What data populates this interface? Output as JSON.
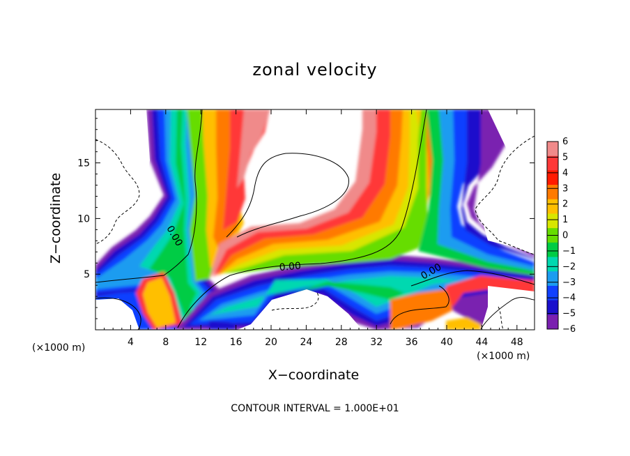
{
  "chart_data": {
    "type": "heatmap",
    "title": "zonal velocity",
    "xlabel": "X−coordinate",
    "ylabel": "Z−coordinate",
    "x_unit_left": "(×1000 m)",
    "x_unit_right": "(×1000 m)",
    "x_ticks": [
      4,
      8,
      12,
      16,
      20,
      24,
      28,
      32,
      36,
      40,
      44,
      48
    ],
    "y_ticks": [
      5,
      10,
      15
    ],
    "xlim": [
      0,
      50
    ],
    "ylim": [
      0,
      19.8
    ],
    "colorbar": {
      "levels": [
        "6",
        "5",
        "4",
        "3",
        "2",
        "1",
        "0",
        "−1",
        "−2",
        "−3",
        "−4",
        "−5",
        "−6"
      ],
      "colors": [
        "#f08a8a",
        "#ff3838",
        "#ff1a00",
        "#ff7a00",
        "#ffbf00",
        "#d8e600",
        "#66dd00",
        "#00cc44",
        "#00d8b0",
        "#1c9cf0",
        "#1040ff",
        "#1a10cc",
        "#7a20b0"
      ]
    },
    "contour_labels": [
      {
        "text": "0.00",
        "x": 22.2,
        "z": 5.4
      },
      {
        "text": "0.00",
        "x": 38.4,
        "z": 5.0
      },
      {
        "text": "0.00",
        "x": 8.7,
        "z": 8.3
      }
    ],
    "contour_interval": "CONTOUR INTERVAL = 1.000E+01"
  }
}
